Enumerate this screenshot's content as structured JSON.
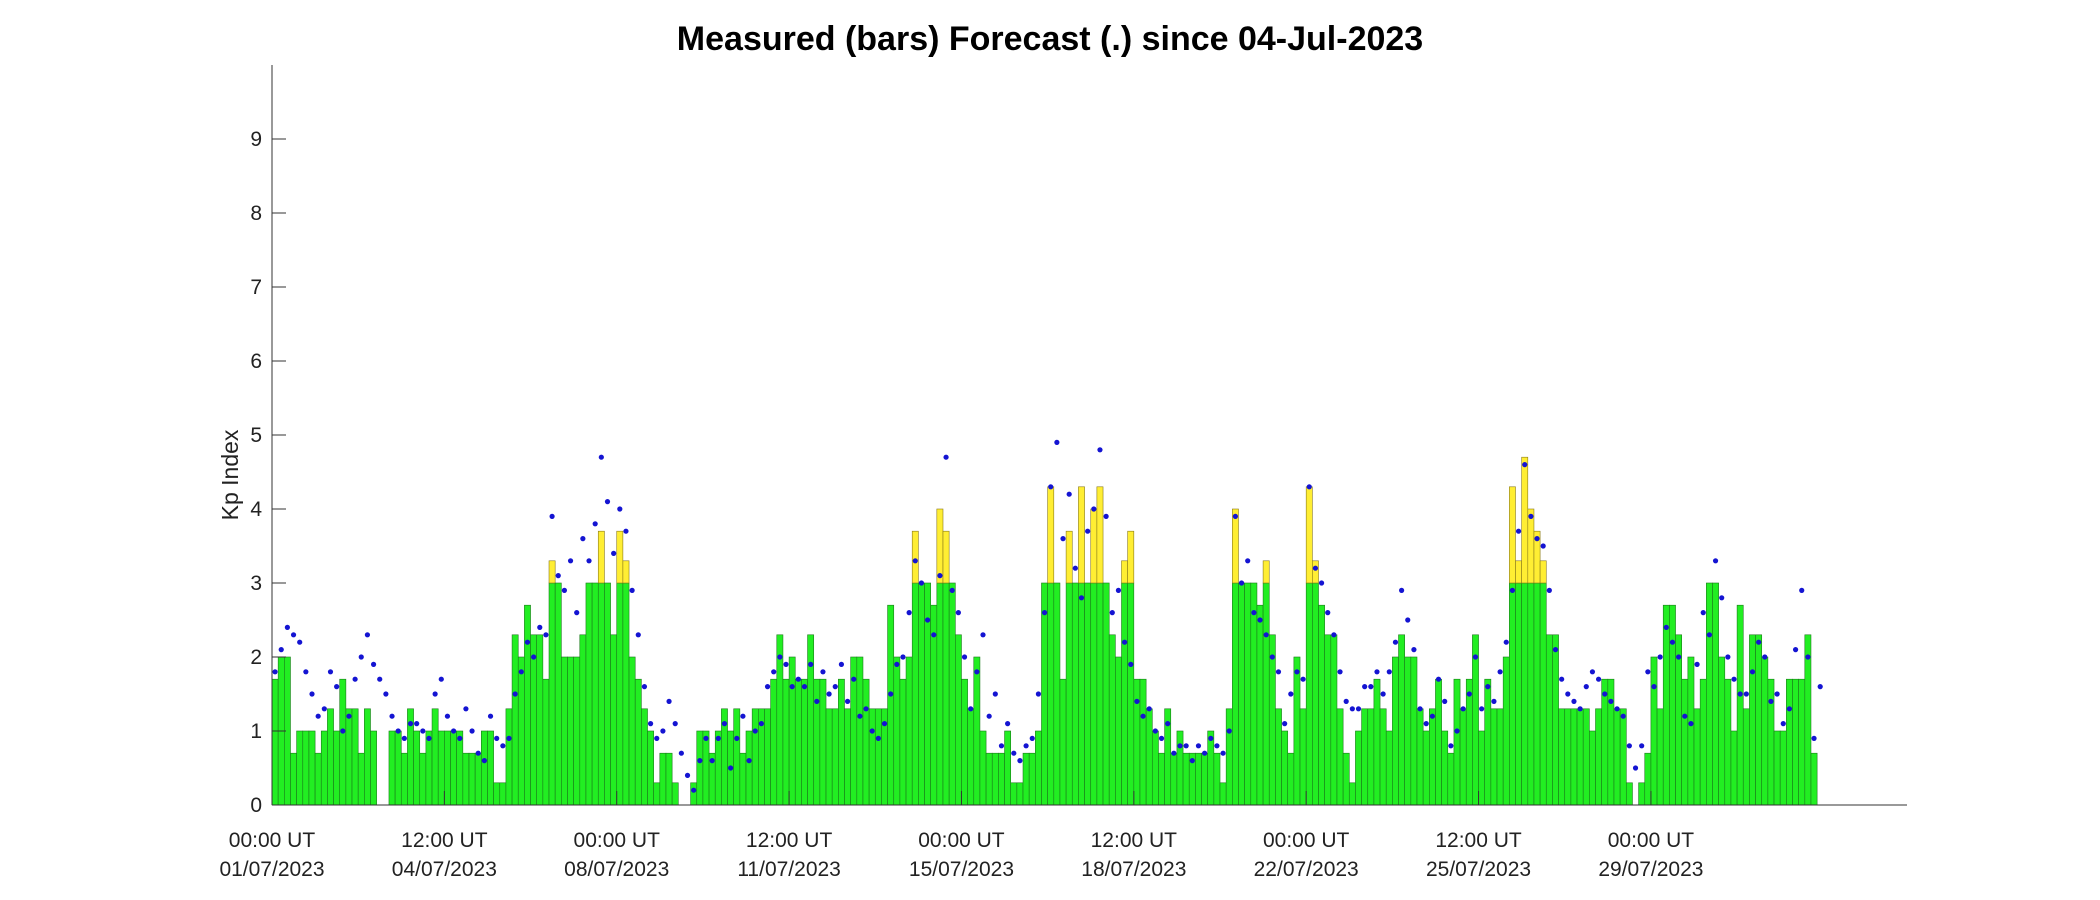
{
  "chart_data": {
    "type": "bar",
    "title": "Measured (bars) Forecast (.) since 04-Jul-2023",
    "ylabel": "Kp Index",
    "xlabel": "",
    "ylim": [
      0,
      10
    ],
    "xlim_days": [
      0,
      33.2
    ],
    "y_ticks": [
      0,
      1,
      2,
      3,
      4,
      5,
      6,
      7,
      8,
      9
    ],
    "x_ticks": [
      {
        "day": 0,
        "time": "00:00 UT",
        "date": "01/07/2023"
      },
      {
        "day": 3.5,
        "time": "12:00 UT",
        "date": "04/07/2023"
      },
      {
        "day": 7,
        "time": "00:00 UT",
        "date": "08/07/2023"
      },
      {
        "day": 10.5,
        "time": "12:00 UT",
        "date": "11/07/2023"
      },
      {
        "day": 14,
        "time": "00:00 UT",
        "date": "15/07/2023"
      },
      {
        "day": 17.5,
        "time": "12:00 UT",
        "date": "18/07/2023"
      },
      {
        "day": 21,
        "time": "00:00 UT",
        "date": "22/07/2023"
      },
      {
        "day": 24.5,
        "time": "12:00 UT",
        "date": "25/07/2023"
      },
      {
        "day": 28,
        "time": "00:00 UT",
        "date": "29/07/2023"
      }
    ],
    "bar_interval_hours": 3,
    "bar_color_rule": [
      {
        "max": 3,
        "color": "#22ee22"
      },
      {
        "above": 3,
        "color": "#ffee33"
      }
    ],
    "measured_kp": [
      1.7,
      2,
      2,
      0.7,
      1,
      1,
      1,
      0.7,
      1,
      1.3,
      1,
      1.7,
      1.3,
      1.3,
      0.7,
      1.3,
      1,
      0,
      0,
      1,
      1,
      0.7,
      1.3,
      1,
      0.7,
      1,
      1.3,
      1,
      1,
      1,
      1,
      0.7,
      0.7,
      0.7,
      1,
      1,
      0.3,
      0.3,
      1.3,
      2.3,
      2,
      2.7,
      2.3,
      2.3,
      1.7,
      3.3,
      3,
      2,
      2,
      2,
      2.3,
      3,
      3,
      3.7,
      3,
      2.3,
      3.7,
      3.3,
      2,
      1.7,
      1.3,
      1,
      0.3,
      0.7,
      0.7,
      0.3,
      0,
      0,
      0.3,
      1,
      1,
      0.7,
      1,
      1.3,
      1,
      1.3,
      0.7,
      1,
      1.3,
      1.3,
      1.3,
      1.7,
      2.3,
      1.7,
      2,
      1.7,
      1.7,
      2.3,
      1.7,
      1.7,
      1.3,
      1.3,
      1.7,
      1.3,
      2,
      2,
      1.7,
      1.3,
      1.3,
      1.3,
      2.7,
      2,
      1.7,
      2,
      3.7,
      3,
      3,
      2.7,
      4,
      3.7,
      3,
      2.3,
      1.7,
      1.3,
      2,
      1,
      0.7,
      0.7,
      0.7,
      1,
      0.3,
      0.3,
      0.7,
      0.7,
      1,
      3,
      4.3,
      3,
      1.7,
      3.7,
      3,
      4.3,
      3,
      4,
      4.3,
      3,
      2.3,
      2,
      3.3,
      3.7,
      1.7,
      1.7,
      1.3,
      1,
      0.7,
      1.3,
      0.7,
      1,
      0.7,
      0.7,
      0.7,
      0.7,
      1,
      0.7,
      0.3,
      1.3,
      4,
      3,
      3,
      3,
      2.7,
      3.3,
      2.3,
      1.3,
      1,
      0.7,
      2,
      1.3,
      4.3,
      3.3,
      2.7,
      2.3,
      2.3,
      1.3,
      0.7,
      0.3,
      1,
      1.3,
      1.3,
      1.7,
      1.3,
      1,
      2,
      2.3,
      2,
      2,
      1.3,
      1,
      1.3,
      1.7,
      1,
      0.7,
      1.7,
      1.3,
      1.7,
      2.3,
      1,
      1.7,
      1.3,
      1.3,
      2,
      4.3,
      3.3,
      4.7,
      4,
      3.7,
      3.3,
      2.3,
      2.3,
      1.3,
      1.3,
      1.3,
      1.3,
      1.3,
      1,
      1.3,
      1.7,
      1.7,
      1.3,
      1.3,
      0.3,
      0,
      0.3,
      0.7,
      2,
      1.3,
      2.7,
      2.7,
      2.3,
      1.7,
      2,
      1.3,
      1.7,
      3,
      3,
      2,
      1.7,
      1,
      2.7,
      1.3,
      2.3,
      2.3,
      2,
      1.7,
      1,
      1,
      1.7,
      1.7,
      1.7,
      2.3,
      0.7
    ],
    "forecast_kp": [
      1.8,
      2.1,
      2.4,
      2.3,
      2.2,
      1.8,
      1.5,
      1.2,
      1.3,
      1.8,
      1.6,
      1.0,
      1.2,
      1.7,
      2.0,
      2.3,
      1.9,
      1.7,
      1.5,
      1.2,
      1.0,
      0.9,
      1.1,
      1.1,
      1.0,
      0.9,
      1.5,
      1.7,
      1.2,
      1.0,
      0.9,
      1.3,
      1.0,
      0.7,
      0.6,
      1.2,
      0.9,
      0.8,
      0.9,
      1.5,
      1.8,
      2.2,
      2.0,
      2.4,
      2.3,
      3.9,
      3.1,
      2.9,
      3.3,
      2.6,
      3.6,
      3.3,
      3.8,
      4.7,
      4.1,
      3.4,
      4.0,
      3.7,
      2.9,
      2.3,
      1.6,
      1.1,
      0.9,
      1.0,
      1.4,
      1.1,
      0.7,
      0.4,
      0.2,
      0.6,
      0.9,
      0.6,
      0.9,
      1.1,
      0.5,
      0.9,
      1.2,
      0.6,
      1.0,
      1.1,
      1.6,
      1.8,
      2.0,
      1.9,
      1.6,
      1.7,
      1.6,
      1.9,
      1.4,
      1.8,
      1.5,
      1.6,
      1.9,
      1.4,
      1.7,
      1.2,
      1.3,
      1.0,
      0.9,
      1.1,
      1.5,
      1.9,
      2.0,
      2.6,
      3.3,
      3.0,
      2.5,
      2.3,
      3.1,
      4.7,
      2.9,
      2.6,
      2.0,
      1.3,
      1.8,
      2.3,
      1.2,
      1.5,
      0.8,
      1.1,
      0.7,
      0.6,
      0.8,
      0.9,
      1.5,
      2.6,
      4.3,
      4.9,
      3.6,
      4.2,
      3.2,
      2.8,
      3.7,
      4.0,
      4.8,
      3.9,
      2.6,
      2.9,
      2.2,
      1.9,
      1.4,
      1.2,
      1.3,
      1.0,
      0.9,
      1.1,
      0.7,
      0.8,
      0.8,
      0.6,
      0.8,
      0.7,
      0.9,
      0.8,
      0.7,
      1.0,
      3.9,
      3.0,
      3.3,
      2.6,
      2.5,
      2.3,
      2.0,
      1.8,
      1.1,
      1.5,
      1.8,
      1.7,
      4.3,
      3.2,
      3.0,
      2.6,
      2.3,
      1.8,
      1.4,
      1.3,
      1.3,
      1.6,
      1.6,
      1.8,
      1.5,
      1.8,
      2.2,
      2.9,
      2.5,
      2.1,
      1.3,
      1.1,
      1.2,
      1.7,
      1.4,
      0.8,
      1.0,
      1.3,
      1.5,
      2.0,
      1.3,
      1.6,
      1.4,
      1.8,
      2.2,
      2.9,
      3.7,
      4.6,
      3.9,
      3.6,
      3.5,
      2.9,
      2.1,
      1.7,
      1.5,
      1.4,
      1.3,
      1.6,
      1.8,
      1.7,
      1.5,
      1.4,
      1.3,
      1.2,
      0.8,
      0.5,
      0.8,
      1.8,
      1.6,
      2.0,
      2.4,
      2.2,
      2.0,
      1.2,
      1.1,
      1.9,
      2.6,
      2.3,
      3.3,
      2.8,
      2.0,
      1.7,
      1.5,
      1.5,
      1.8,
      2.2,
      2.0,
      1.4,
      1.5,
      1.1,
      1.3,
      2.1,
      2.9,
      2.0,
      0.9,
      1.6
    ]
  }
}
